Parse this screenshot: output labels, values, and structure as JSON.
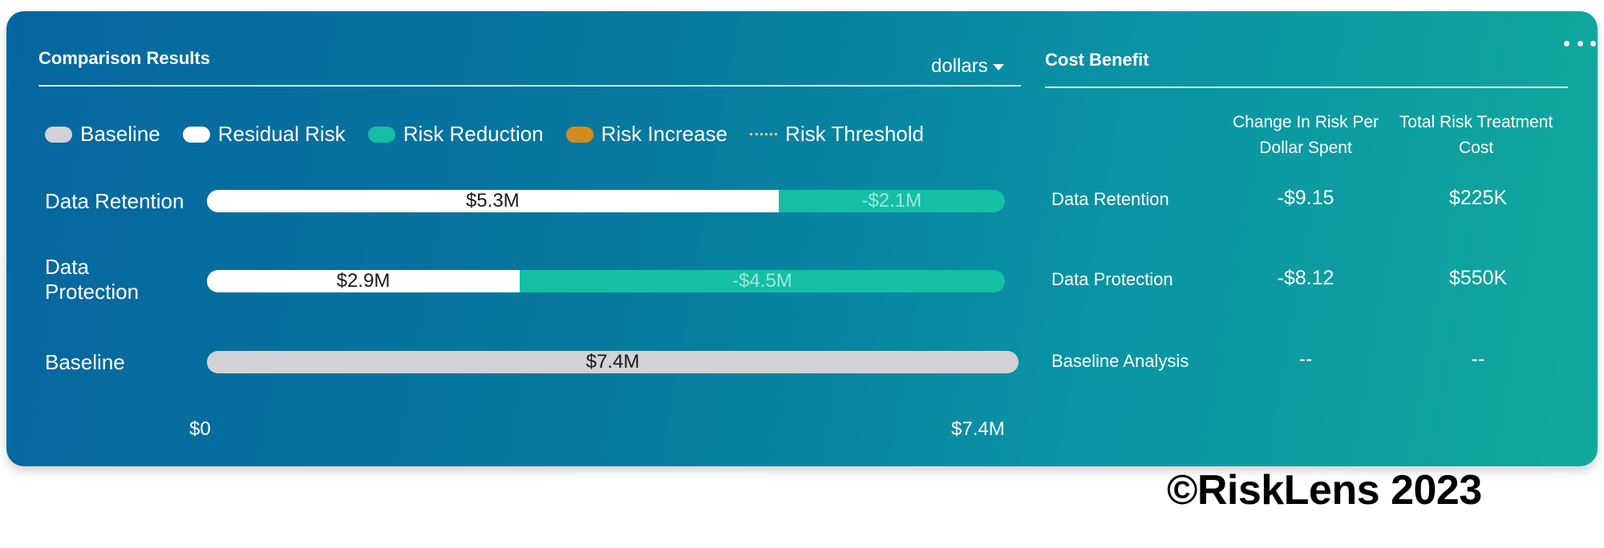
{
  "comparison": {
    "title": "Comparison Results",
    "units_selected": "dollars",
    "legend": [
      {
        "label": "Baseline",
        "color": "#d2d2d6"
      },
      {
        "label": "Residual Risk",
        "color": "#ffffff"
      },
      {
        "label": "Risk Reduction",
        "color": "#14bfa4"
      },
      {
        "label": "Risk Increase",
        "color": "#d58a1c"
      },
      {
        "label": "Risk Threshold",
        "color": "#f2c94c"
      }
    ],
    "axis": {
      "min_label": "$0",
      "max_label": "$7.4M"
    }
  },
  "chart_data": {
    "type": "bar",
    "orientation": "horizontal",
    "stacked": true,
    "categories": [
      "Data Retention",
      "Data Protection",
      "Baseline"
    ],
    "series": [
      {
        "name": "Residual Risk",
        "values": [
          5.3,
          2.9,
          null
        ],
        "labels": [
          "$5.3M",
          "$2.9M",
          ""
        ]
      },
      {
        "name": "Risk Reduction",
        "values": [
          2.1,
          4.5,
          null
        ],
        "labels": [
          "-$2.1M",
          "-$4.5M",
          ""
        ]
      },
      {
        "name": "Baseline",
        "values": [
          null,
          null,
          7.4
        ],
        "labels": [
          "",
          "",
          "$7.4M"
        ]
      }
    ],
    "xlim": [
      0,
      7.4
    ],
    "x_tick_labels": [
      "$0",
      "$7.4M"
    ],
    "legend_position": "top-left"
  },
  "rows": [
    {
      "label_lines": [
        "Data Retention"
      ],
      "residual_value": 5.3,
      "residual_label": "$5.3M",
      "reduction_value": 2.1,
      "reduction_label": "-$2.1M"
    },
    {
      "label_lines": [
        "Data",
        "Protection"
      ],
      "residual_value": 2.9,
      "residual_label": "$2.9M",
      "reduction_value": 4.5,
      "reduction_label": "-$4.5M"
    },
    {
      "label_lines": [
        "Baseline"
      ],
      "baseline_value": 7.4,
      "baseline_label": "$7.4M"
    }
  ],
  "cost_benefit": {
    "title": "Cost Benefit",
    "col1_header": [
      "Change In Risk Per",
      "Dollar Spent"
    ],
    "col2_header": [
      "Total Risk Treatment",
      "Cost"
    ],
    "rows": [
      {
        "name": "Data Retention",
        "change": "-$9.15",
        "cost": "$225K"
      },
      {
        "name": "Data Protection",
        "change": "-$8.12",
        "cost": "$550K"
      },
      {
        "name": "Baseline Analysis",
        "change": "--",
        "cost": "--"
      }
    ]
  },
  "footer": {
    "copyright": "©RiskLens 2023"
  }
}
